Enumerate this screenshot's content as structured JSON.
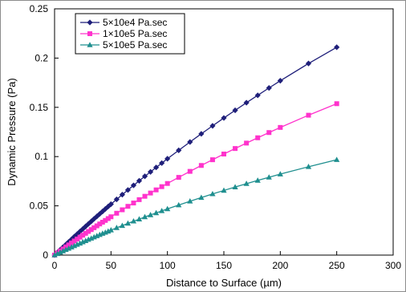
{
  "chart_data": {
    "type": "line",
    "title": "",
    "xlabel": "Distance to Surface (µm)",
    "ylabel": "Dynamic Pressure (Pa)",
    "xlim": [
      0,
      300
    ],
    "ylim": [
      0,
      0.25
    ],
    "x_ticks": [
      0,
      50,
      100,
      150,
      200,
      250,
      300
    ],
    "y_ticks": [
      0,
      0.05,
      0.1,
      0.15,
      0.2,
      0.25
    ],
    "x_tick_labels": [
      "0",
      "50",
      "100",
      "150",
      "200",
      "250",
      "300"
    ],
    "y_tick_labels": [
      "0",
      "0.05",
      "0.1",
      "0.15",
      "0.2",
      "0.25"
    ],
    "grid": false,
    "legend_position": "top-left",
    "x": [
      0,
      2.5,
      5,
      7.5,
      10,
      12.5,
      15,
      17.5,
      20,
      22.5,
      25,
      27.5,
      30,
      32.5,
      35,
      37.5,
      40,
      42.5,
      45,
      47.5,
      50,
      55,
      60,
      65,
      70,
      75,
      80,
      85,
      90,
      95,
      100,
      110,
      120,
      130,
      140,
      150,
      160,
      170,
      180,
      190,
      200,
      225,
      250
    ],
    "series": [
      {
        "name": "5×10e4 Pa.sec",
        "color": "#1f1f7a",
        "marker": "diamond",
        "values": [
          0,
          0.0027,
          0.0054,
          0.0081,
          0.0107,
          0.0134,
          0.016,
          0.0187,
          0.0213,
          0.0239,
          0.0265,
          0.0291,
          0.0317,
          0.0342,
          0.0368,
          0.0393,
          0.0418,
          0.0443,
          0.0468,
          0.0493,
          0.0517,
          0.0566,
          0.0614,
          0.0661,
          0.0708,
          0.0754,
          0.08,
          0.0845,
          0.089,
          0.0934,
          0.0978,
          0.1064,
          0.1148,
          0.1231,
          0.1312,
          0.1392,
          0.147,
          0.1547,
          0.1622,
          0.1697,
          0.177,
          0.1945,
          0.211
        ]
      },
      {
        "name": "1×10e5 Pa.sec",
        "color": "#ff33cc",
        "marker": "square",
        "values": [
          0,
          0.0021,
          0.0042,
          0.0062,
          0.0083,
          0.0103,
          0.0123,
          0.0143,
          0.0163,
          0.0182,
          0.0202,
          0.0221,
          0.024,
          0.0259,
          0.0278,
          0.0297,
          0.0316,
          0.0334,
          0.0352,
          0.0371,
          0.0389,
          0.0425,
          0.046,
          0.0495,
          0.0529,
          0.0563,
          0.0597,
          0.063,
          0.0662,
          0.0695,
          0.0727,
          0.0789,
          0.085,
          0.091,
          0.0968,
          0.1026,
          0.1082,
          0.1137,
          0.1191,
          0.1244,
          0.1296,
          0.142,
          0.1537
        ]
      },
      {
        "name": "5×10e5 Pa.sec",
        "color": "#1f8f8f",
        "marker": "triangle",
        "values": [
          0,
          0.0014,
          0.0028,
          0.0041,
          0.0055,
          0.0068,
          0.0081,
          0.0094,
          0.0107,
          0.012,
          0.0133,
          0.0145,
          0.0158,
          0.017,
          0.0183,
          0.0195,
          0.0207,
          0.0219,
          0.023,
          0.0242,
          0.0254,
          0.0277,
          0.0299,
          0.0322,
          0.0344,
          0.0365,
          0.0387,
          0.0408,
          0.0428,
          0.0449,
          0.0469,
          0.0508,
          0.0547,
          0.0584,
          0.0621,
          0.0656,
          0.0691,
          0.0725,
          0.0758,
          0.079,
          0.0822,
          0.0897,
          0.0968
        ]
      }
    ]
  }
}
